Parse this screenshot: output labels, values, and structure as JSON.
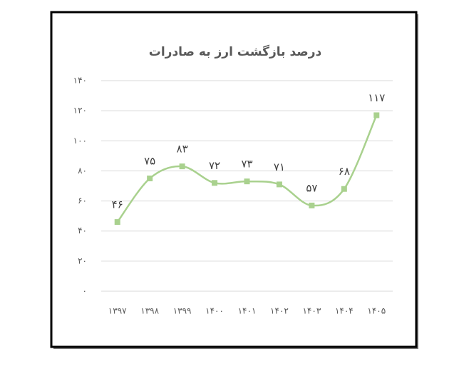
{
  "chart_data": {
    "type": "line",
    "title": "درصد بازگشت ارز به صادرات",
    "categories": [
      "۱۳۹۷",
      "۱۳۹۸",
      "۱۳۹۹",
      "۱۴۰۰",
      "۱۴۰۱",
      "۱۴۰۲",
      "۱۴۰۳",
      "۱۴۰۴",
      "۱۴۰۵"
    ],
    "values": [
      46,
      75,
      83,
      72,
      73,
      71,
      57,
      68,
      117
    ],
    "value_labels": [
      "۴۶",
      "۷۵",
      "۸۳",
      "۷۲",
      "۷۳",
      "۷۱",
      "۵۷",
      "۶۸",
      "۱۱۷"
    ],
    "color": "#a9d18e",
    "smooth": true,
    "grid": true,
    "ylim": [
      0,
      140
    ],
    "yticks": [
      {
        "value": 0,
        "label": "۰"
      },
      {
        "value": 20,
        "label": "۲۰"
      },
      {
        "value": 40,
        "label": "۴۰"
      },
      {
        "value": 60,
        "label": "۶۰"
      },
      {
        "value": 80,
        "label": "۸۰"
      },
      {
        "value": 100,
        "label": "۱۰۰"
      },
      {
        "value": 120,
        "label": "۱۲۰"
      },
      {
        "value": 140,
        "label": "۱۴۰"
      }
    ]
  }
}
